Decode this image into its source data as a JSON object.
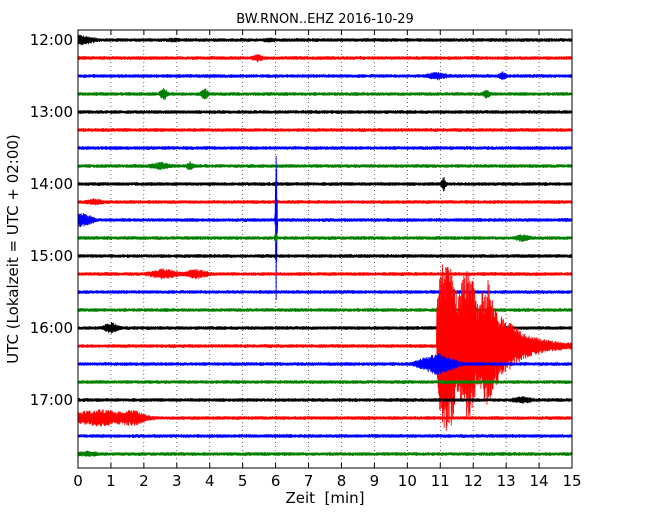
{
  "chart_data": {
    "type": "line",
    "title": "BW.RNON..EHZ 2016-10-29",
    "xlabel": "Zeit  [min]",
    "ylabel": "UTC (Lokalzeit = UTC + 02:00)",
    "xlim": [
      0,
      15
    ],
    "x_ticks": [
      "0",
      "1",
      "2",
      "3",
      "4",
      "5",
      "6",
      "7",
      "8",
      "9",
      "10",
      "11",
      "12",
      "13",
      "14",
      "15"
    ],
    "y_ticks": [
      "12:00",
      "13:00",
      "14:00",
      "15:00",
      "16:00",
      "17:00"
    ],
    "grid": "vertical dotted",
    "trace_interval_minutes": 15,
    "color_cycle": [
      "#000000",
      "#ff0000",
      "#0000ff",
      "#008000"
    ],
    "series": [
      {
        "start": "12:00",
        "color": "#000000",
        "events": [
          {
            "t": 0.05,
            "amp": 0.35,
            "dur": 0.6
          },
          {
            "t": 2.9,
            "amp": 0.08,
            "dur": 0.2
          },
          {
            "t": 5.8,
            "amp": 0.08,
            "dur": 0.2
          }
        ]
      },
      {
        "start": "12:15",
        "color": "#ff0000",
        "events": [
          {
            "t": 5.45,
            "amp": 0.2,
            "dur": 0.2
          }
        ]
      },
      {
        "start": "12:30",
        "color": "#0000ff",
        "events": [
          {
            "t": 10.9,
            "amp": 0.25,
            "dur": 0.4
          },
          {
            "t": 12.9,
            "amp": 0.25,
            "dur": 0.15
          }
        ]
      },
      {
        "start": "12:45",
        "color": "#008000",
        "events": [
          {
            "t": 2.6,
            "amp": 0.45,
            "dur": 0.15
          },
          {
            "t": 3.85,
            "amp": 0.45,
            "dur": 0.15
          },
          {
            "t": 12.4,
            "amp": 0.25,
            "dur": 0.15
          }
        ]
      },
      {
        "start": "13:00",
        "color": "#000000",
        "events": []
      },
      {
        "start": "13:15",
        "color": "#ff0000",
        "events": []
      },
      {
        "start": "13:30",
        "color": "#0000ff",
        "events": []
      },
      {
        "start": "13:45",
        "color": "#008000",
        "events": [
          {
            "t": 2.5,
            "amp": 0.2,
            "dur": 0.4
          },
          {
            "t": 3.4,
            "amp": 0.25,
            "dur": 0.15
          }
        ]
      },
      {
        "start": "14:00",
        "color": "#000000",
        "events": [
          {
            "t": 11.1,
            "amp": 0.5,
            "dur": 0.1
          }
        ]
      },
      {
        "start": "14:15",
        "color": "#ff0000",
        "events": [
          {
            "t": 0.5,
            "amp": 0.15,
            "dur": 0.3
          }
        ]
      },
      {
        "start": "14:30",
        "color": "#0000ff",
        "events": [
          {
            "t": 0.1,
            "amp": 0.5,
            "dur": 0.5
          },
          {
            "t": 6.02,
            "amp": 7.5,
            "dur": 0.04
          }
        ]
      },
      {
        "start": "14:45",
        "color": "#008000",
        "events": [
          {
            "t": 6.0,
            "amp": 0.4,
            "dur": 0.05
          },
          {
            "t": 13.5,
            "amp": 0.2,
            "dur": 0.3
          }
        ]
      },
      {
        "start": "15:00",
        "color": "#000000",
        "events": []
      },
      {
        "start": "15:15",
        "color": "#ff0000",
        "events": [
          {
            "t": 2.6,
            "amp": 0.35,
            "dur": 0.6
          },
          {
            "t": 3.6,
            "amp": 0.3,
            "dur": 0.5
          }
        ]
      },
      {
        "start": "15:30",
        "color": "#0000ff",
        "events": []
      },
      {
        "start": "15:45",
        "color": "#008000",
        "events": []
      },
      {
        "start": "16:00",
        "color": "#000000",
        "events": [
          {
            "t": 1.0,
            "amp": 0.4,
            "dur": 0.3
          }
        ]
      },
      {
        "start": "16:15",
        "color": "#ff0000",
        "events": [
          {
            "t": 10.9,
            "amp": 9.5,
            "dur": 2.4,
            "quake": true
          }
        ]
      },
      {
        "start": "16:30",
        "color": "#0000ff",
        "events": [
          {
            "t": 10.9,
            "amp": 0.8,
            "dur": 0.8
          }
        ]
      },
      {
        "start": "16:45",
        "color": "#008000",
        "events": []
      },
      {
        "start": "17:00",
        "color": "#000000",
        "events": [
          {
            "t": 13.5,
            "amp": 0.2,
            "dur": 0.4
          }
        ]
      },
      {
        "start": "17:15",
        "color": "#ff0000",
        "events": [
          {
            "t": 0.65,
            "amp": 0.6,
            "dur": 1.8
          },
          {
            "t": 1.7,
            "amp": 0.35,
            "dur": 0.4
          }
        ]
      },
      {
        "start": "17:30",
        "color": "#0000ff",
        "events": []
      },
      {
        "start": "17:45",
        "color": "#008000",
        "events": [
          {
            "t": 0.3,
            "amp": 0.15,
            "dur": 0.4
          }
        ]
      }
    ]
  }
}
